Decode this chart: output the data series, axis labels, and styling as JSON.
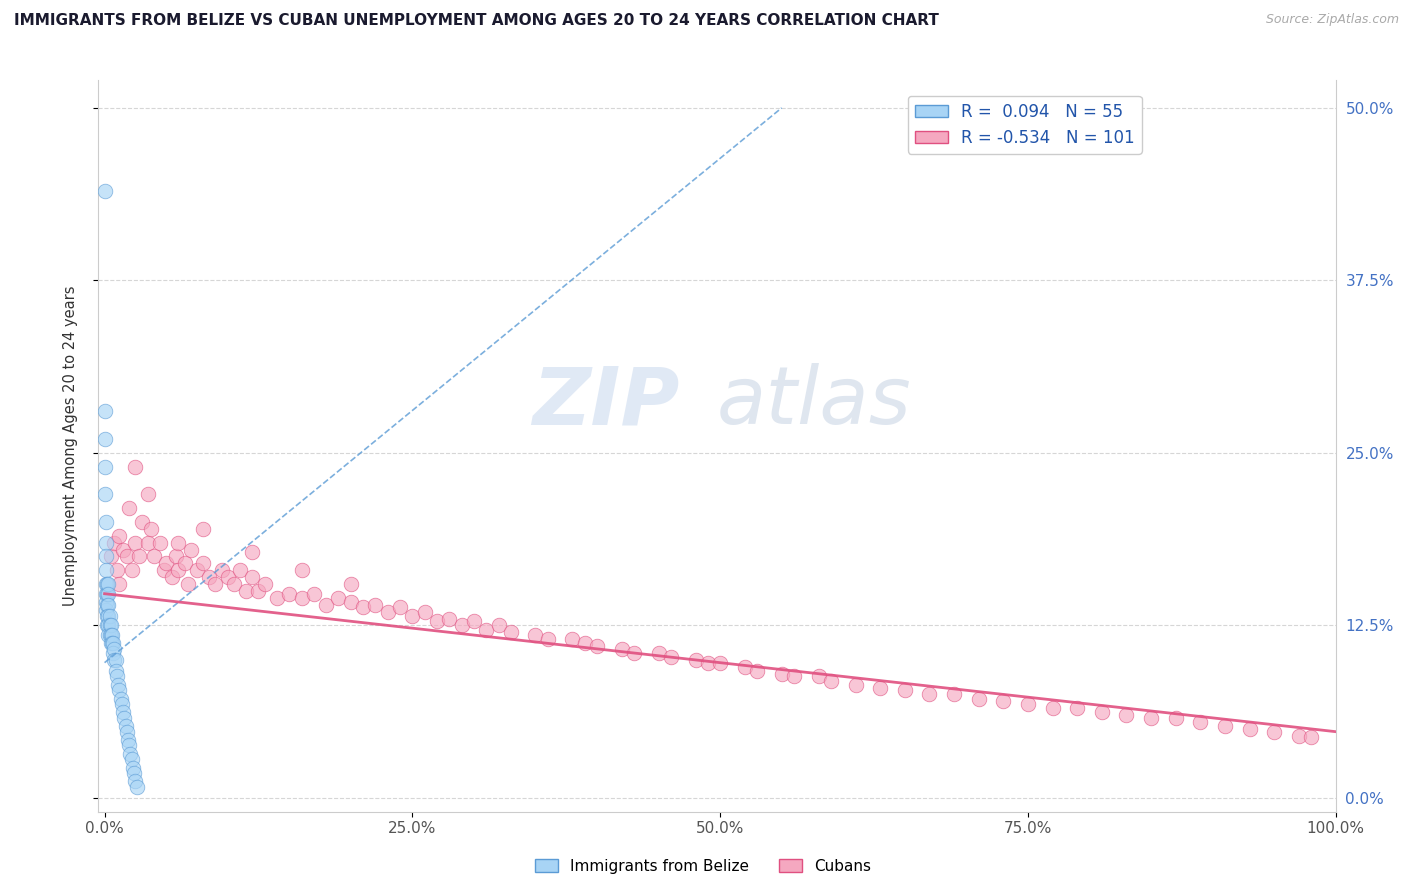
{
  "title": "IMMIGRANTS FROM BELIZE VS CUBAN UNEMPLOYMENT AMONG AGES 20 TO 24 YEARS CORRELATION CHART",
  "source": "Source: ZipAtlas.com",
  "ylabel": "Unemployment Among Ages 20 to 24 years",
  "xlim": [
    -0.005,
    1.0
  ],
  "ylim": [
    -0.01,
    0.52
  ],
  "xticks": [
    0,
    0.25,
    0.5,
    0.75,
    1.0
  ],
  "xticklabels": [
    "0.0%",
    "25.0%",
    "50.0%",
    "75.0%",
    "100.0%"
  ],
  "yticks": [
    0.0,
    0.125,
    0.25,
    0.375,
    0.5
  ],
  "yticklabels_right": [
    "0.0%",
    "12.5%",
    "25.0%",
    "37.5%",
    "50.0%"
  ],
  "legend_r_belize": "0.094",
  "legend_n_belize": "55",
  "legend_r_cuban": "-0.534",
  "legend_n_cuban": "101",
  "color_belize_fill": "#a8d4f5",
  "color_belize_edge": "#5b9bd5",
  "color_cuban_fill": "#f5a8c0",
  "color_cuban_edge": "#e05080",
  "color_belize_line": "#5b9bd5",
  "color_cuban_line": "#e05080",
  "watermark_zip": "ZIP",
  "watermark_atlas": "atlas",
  "belize_x": [
    0.0,
    0.0,
    0.0,
    0.0,
    0.0,
    0.001,
    0.001,
    0.001,
    0.001,
    0.001,
    0.001,
    0.001,
    0.001,
    0.002,
    0.002,
    0.002,
    0.002,
    0.002,
    0.003,
    0.003,
    0.003,
    0.003,
    0.003,
    0.003,
    0.004,
    0.004,
    0.004,
    0.005,
    0.005,
    0.005,
    0.006,
    0.006,
    0.007,
    0.007,
    0.008,
    0.008,
    0.009,
    0.009,
    0.01,
    0.011,
    0.012,
    0.013,
    0.014,
    0.015,
    0.016,
    0.017,
    0.018,
    0.019,
    0.02,
    0.021,
    0.022,
    0.023,
    0.024,
    0.025,
    0.026
  ],
  "belize_y": [
    0.44,
    0.28,
    0.26,
    0.24,
    0.22,
    0.2,
    0.185,
    0.175,
    0.165,
    0.155,
    0.148,
    0.142,
    0.136,
    0.155,
    0.148,
    0.14,
    0.132,
    0.125,
    0.155,
    0.148,
    0.14,
    0.132,
    0.125,
    0.118,
    0.132,
    0.125,
    0.118,
    0.125,
    0.118,
    0.112,
    0.118,
    0.112,
    0.112,
    0.105,
    0.108,
    0.1,
    0.1,
    0.092,
    0.088,
    0.082,
    0.078,
    0.072,
    0.068,
    0.062,
    0.058,
    0.052,
    0.048,
    0.042,
    0.038,
    0.032,
    0.028,
    0.022,
    0.018,
    0.012,
    0.008
  ],
  "cuban_x": [
    0.005,
    0.008,
    0.01,
    0.012,
    0.015,
    0.018,
    0.02,
    0.022,
    0.025,
    0.028,
    0.03,
    0.035,
    0.038,
    0.04,
    0.045,
    0.048,
    0.05,
    0.055,
    0.058,
    0.06,
    0.065,
    0.068,
    0.07,
    0.075,
    0.08,
    0.085,
    0.09,
    0.095,
    0.1,
    0.105,
    0.11,
    0.115,
    0.12,
    0.125,
    0.13,
    0.14,
    0.15,
    0.16,
    0.17,
    0.18,
    0.19,
    0.2,
    0.21,
    0.22,
    0.23,
    0.24,
    0.25,
    0.26,
    0.27,
    0.28,
    0.29,
    0.3,
    0.31,
    0.32,
    0.33,
    0.35,
    0.36,
    0.38,
    0.39,
    0.4,
    0.42,
    0.43,
    0.45,
    0.46,
    0.48,
    0.49,
    0.5,
    0.52,
    0.53,
    0.55,
    0.56,
    0.58,
    0.59,
    0.61,
    0.63,
    0.65,
    0.67,
    0.69,
    0.71,
    0.73,
    0.75,
    0.77,
    0.79,
    0.81,
    0.83,
    0.85,
    0.87,
    0.89,
    0.91,
    0.93,
    0.95,
    0.97,
    0.98,
    0.012,
    0.025,
    0.035,
    0.06,
    0.08,
    0.12,
    0.16,
    0.2
  ],
  "cuban_y": [
    0.175,
    0.185,
    0.165,
    0.19,
    0.18,
    0.175,
    0.21,
    0.165,
    0.185,
    0.175,
    0.2,
    0.185,
    0.195,
    0.175,
    0.185,
    0.165,
    0.17,
    0.16,
    0.175,
    0.165,
    0.17,
    0.155,
    0.18,
    0.165,
    0.17,
    0.16,
    0.155,
    0.165,
    0.16,
    0.155,
    0.165,
    0.15,
    0.16,
    0.15,
    0.155,
    0.145,
    0.148,
    0.145,
    0.148,
    0.14,
    0.145,
    0.142,
    0.138,
    0.14,
    0.135,
    0.138,
    0.132,
    0.135,
    0.128,
    0.13,
    0.125,
    0.128,
    0.122,
    0.125,
    0.12,
    0.118,
    0.115,
    0.115,
    0.112,
    0.11,
    0.108,
    0.105,
    0.105,
    0.102,
    0.1,
    0.098,
    0.098,
    0.095,
    0.092,
    0.09,
    0.088,
    0.088,
    0.085,
    0.082,
    0.08,
    0.078,
    0.075,
    0.075,
    0.072,
    0.07,
    0.068,
    0.065,
    0.065,
    0.062,
    0.06,
    0.058,
    0.058,
    0.055,
    0.052,
    0.05,
    0.048,
    0.045,
    0.044,
    0.155,
    0.24,
    0.22,
    0.185,
    0.195,
    0.178,
    0.165,
    0.155
  ],
  "belize_regline_x": [
    0.0,
    0.55
  ],
  "belize_regline_y": [
    0.098,
    0.5
  ],
  "cuban_regline_x": [
    0.0,
    1.0
  ],
  "cuban_regline_y": [
    0.148,
    0.048
  ]
}
